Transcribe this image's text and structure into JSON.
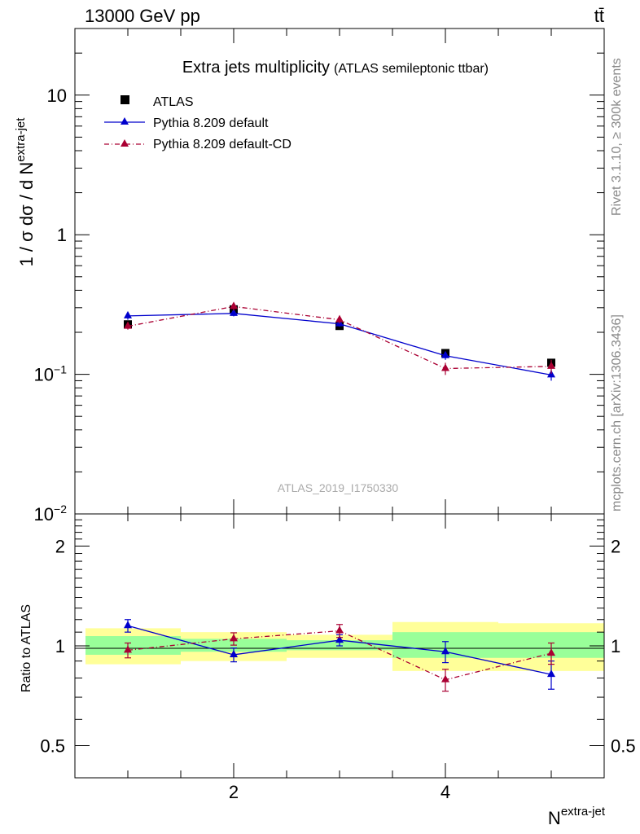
{
  "header": {
    "energy_label": "13000 GeV pp",
    "process_label": "tt̄"
  },
  "side_labels": {
    "rivet": "Rivet 3.1.10, ≥ 300k events",
    "mcplots": "mcplots.cern.ch [arXiv:1306.3436]"
  },
  "chart_data": [
    {
      "type": "line",
      "title": "Extra jets multiplicity",
      "subtitle": "(ATLAS semileptonic ttbar)",
      "watermark": "ATLAS_2019_I1750330",
      "ylabel_main": "1 / σ dσ / d N",
      "ylabel_sup": "extra-jet",
      "yscale": "log",
      "ylim": [
        0.01,
        30
      ],
      "xlim": [
        0.5,
        5.5
      ],
      "y_ticks": [
        {
          "value": 10,
          "label": "10"
        },
        {
          "value": 1,
          "label": "1"
        },
        {
          "value": 0.1,
          "label": "10",
          "sup": "−1"
        },
        {
          "value": 0.01,
          "label": "10",
          "sup": "−2"
        }
      ],
      "legend_position": "top-left",
      "series": [
        {
          "name": "ATLAS",
          "color": "#000000",
          "marker": "square",
          "x": [
            1,
            2,
            3,
            4,
            5
          ],
          "y": [
            0.228,
            0.292,
            0.222,
            0.142,
            0.121
          ],
          "yerr": [
            0.012,
            0.015,
            0.01,
            0.008,
            0.007
          ]
        },
        {
          "name": "Pythia 8.209 default",
          "color": "#0000cc",
          "marker": "triangle",
          "line": "solid",
          "x": [
            1,
            2,
            3,
            4,
            5
          ],
          "y": [
            0.262,
            0.273,
            0.23,
            0.136,
            0.099
          ],
          "yerr": [
            0.016,
            0.013,
            0.011,
            0.009,
            0.009
          ]
        },
        {
          "name": "Pythia 8.209 default-CD",
          "color": "#aa0033",
          "marker": "triangle",
          "line": "dashdot",
          "x": [
            1,
            2,
            3,
            4,
            5
          ],
          "y": [
            0.221,
            0.306,
            0.246,
            0.11,
            0.114
          ],
          "yerr": [
            0.012,
            0.02,
            0.015,
            0.011,
            0.013
          ]
        }
      ]
    },
    {
      "type": "line",
      "ylabel": "Ratio to ATLAS",
      "xlabel_main": "N",
      "xlabel_sup": "extra-jet",
      "yscale": "log",
      "ylim": [
        0.4,
        2.5
      ],
      "xlim": [
        0.5,
        5.5
      ],
      "x_ticks": [
        2,
        4
      ],
      "y_ticks": [
        {
          "value": 2,
          "label": "2"
        },
        {
          "value": 1,
          "label": "1"
        },
        {
          "value": 0.5,
          "label": "0.5"
        }
      ],
      "bands": [
        {
          "x0": 0.6,
          "x1": 1.5,
          "yellow": [
            0.88,
            1.13
          ],
          "green": [
            0.94,
            1.07
          ]
        },
        {
          "x0": 1.5,
          "x1": 2.5,
          "yellow": [
            0.9,
            1.1
          ],
          "green": [
            0.96,
            1.05
          ]
        },
        {
          "x0": 2.5,
          "x1": 3.5,
          "yellow": [
            0.92,
            1.08
          ],
          "green": [
            0.97,
            1.04
          ]
        },
        {
          "x0": 3.5,
          "x1": 4.5,
          "yellow": [
            0.84,
            1.18
          ],
          "green": [
            0.92,
            1.1
          ]
        },
        {
          "x0": 4.5,
          "x1": 5.5,
          "yellow": [
            0.84,
            1.17
          ],
          "green": [
            0.92,
            1.1
          ]
        }
      ],
      "series": [
        {
          "name": "Pythia 8.209 default",
          "color": "#0000cc",
          "line": "solid",
          "x": [
            1,
            2,
            3,
            4,
            5
          ],
          "y": [
            1.15,
            0.94,
            1.04,
            0.96,
            0.82
          ],
          "yerr": [
            0.05,
            0.045,
            0.04,
            0.07,
            0.08
          ]
        },
        {
          "name": "Pythia 8.209 default-CD",
          "color": "#aa0033",
          "line": "dashdot",
          "x": [
            1,
            2,
            3,
            4,
            5
          ],
          "y": [
            0.97,
            1.05,
            1.11,
            0.79,
            0.95
          ],
          "yerr": [
            0.05,
            0.045,
            0.05,
            0.06,
            0.07
          ]
        }
      ]
    }
  ]
}
